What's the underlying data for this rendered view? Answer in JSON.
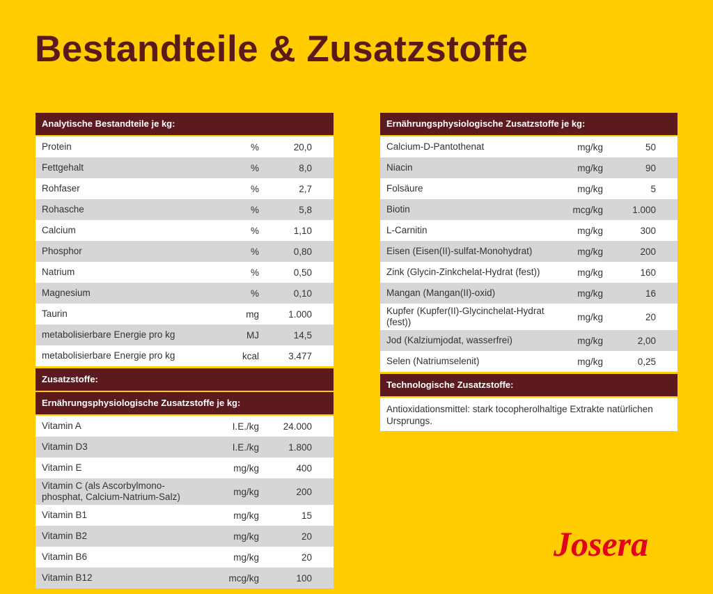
{
  "title": "Bestandteile & Zusatzstoffe",
  "analytical": {
    "header": "Analytische Bestandteile je kg:",
    "rows": [
      [
        "Protein",
        "%",
        "20,0"
      ],
      [
        "Fettgehalt",
        "%",
        "8,0"
      ],
      [
        "Rohfaser",
        "%",
        "2,7"
      ],
      [
        "Rohasche",
        "%",
        "5,8"
      ],
      [
        "Calcium",
        "%",
        "1,10"
      ],
      [
        "Phosphor",
        "%",
        "0,80"
      ],
      [
        "Natrium",
        "%",
        "0,50"
      ],
      [
        "Magnesium",
        "%",
        "0,10"
      ],
      [
        "Taurin",
        "mg",
        "1.000"
      ],
      [
        "metabolisierbare Energie pro kg",
        "MJ",
        "14,5"
      ],
      [
        "metabolisierbare Energie pro kg",
        "kcal",
        "3.477"
      ]
    ]
  },
  "additives": {
    "header": "Zusatzstoffe:"
  },
  "vitamins": {
    "header": "Ernährungsphysiologische Zusatzstoffe je kg:",
    "rows": [
      [
        "Vitamin A",
        "I.E./kg",
        "24.000"
      ],
      [
        "Vitamin D3",
        "I.E./kg",
        "1.800"
      ],
      [
        "Vitamin E",
        "mg/kg",
        "400"
      ],
      [
        "Vitamin C (als Ascorbylmono-phosphat, Calcium-Natrium-Salz)",
        "mg/kg",
        "200"
      ],
      [
        "Vitamin B1",
        "mg/kg",
        "15"
      ],
      [
        "Vitamin B2",
        "mg/kg",
        "20"
      ],
      [
        "Vitamin B6",
        "mg/kg",
        "20"
      ],
      [
        "Vitamin B12",
        "mcg/kg",
        "100"
      ]
    ]
  },
  "nutritional": {
    "header": "Ernährungsphysiologische Zusatzstoffe je kg:",
    "rows": [
      [
        "Calcium-D-Pantothenat",
        "mg/kg",
        "50"
      ],
      [
        "Niacin",
        "mg/kg",
        "90"
      ],
      [
        "Folsäure",
        "mg/kg",
        "5"
      ],
      [
        "Biotin",
        "mcg/kg",
        "1.000"
      ],
      [
        "L-Carnitin",
        "mg/kg",
        "300"
      ],
      [
        "Eisen (Eisen(II)-sulfat-Monohydrat)",
        "mg/kg",
        "200"
      ],
      [
        "Zink (Glycin-Zinkchelat-Hydrat (fest))",
        "mg/kg",
        "160"
      ],
      [
        "Mangan (Mangan(II)-oxid)",
        "mg/kg",
        "16"
      ],
      [
        "Kupfer (Kupfer(II)-Glycinchelat-Hydrat (fest))",
        "mg/kg",
        "20"
      ],
      [
        "Jod (Kalziumjodat, wasserfrei)",
        "mg/kg",
        "2,00"
      ],
      [
        "Selen (Natriumselenit)",
        "mg/kg",
        "0,25"
      ]
    ]
  },
  "technological": {
    "header": "Technologische Zusatzstoffe:",
    "text": "Antioxidationsmittel: stark tocopherolhaltige Extrakte natürlichen Ursprungs."
  },
  "logo": "Josera"
}
